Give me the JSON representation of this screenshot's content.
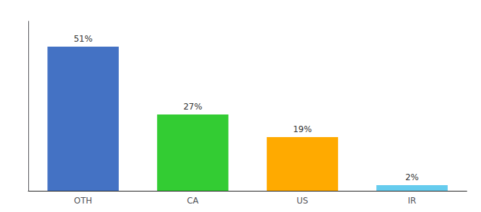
{
  "chart_data": {
    "type": "bar",
    "categories": [
      "OTH",
      "CA",
      "US",
      "IR"
    ],
    "values": [
      51,
      27,
      19,
      2
    ],
    "value_labels": [
      "51%",
      "27%",
      "19%",
      "2%"
    ],
    "colors": [
      "#4472C4",
      "#33CC33",
      "#FFAA00",
      "#66CCEE"
    ],
    "ylim": [
      0,
      60
    ],
    "data_labels": true,
    "tick_labels": "x",
    "grid": false
  }
}
